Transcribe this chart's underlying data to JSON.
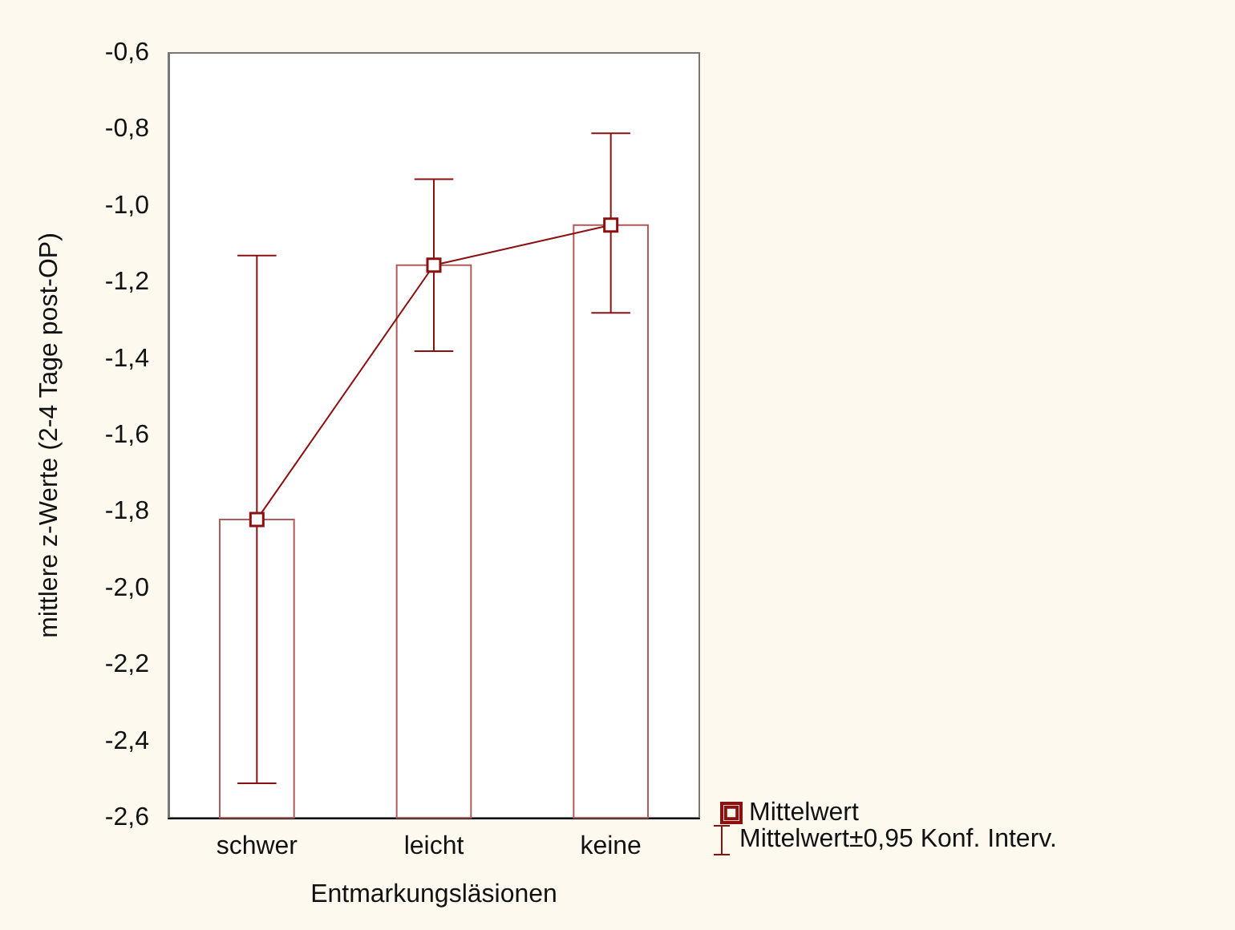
{
  "chart_data": {
    "type": "bar",
    "xlabel": "Entmarkungsläsionen",
    "ylabel": "mittlere z-Werte (2-4 Tage post-OP)",
    "categories": [
      "schwer",
      "leicht",
      "keine"
    ],
    "series": [
      {
        "color": "#b05a5a",
        "values": [
          0.78,
          1.445,
          1.55
        ],
        "base": [
          -2.6,
          -2.6,
          -2.6
        ]
      },
      {
        "type": "line",
        "name": "Mittelwert",
        "color": "#8b1010",
        "marker": "square",
        "values": [
          -1.82,
          -1.155,
          -1.05
        ],
        "errors": [
          [
            -2.51,
            -1.13
          ],
          [
            -1.38,
            -0.93
          ],
          [
            -1.28,
            -0.81
          ]
        ]
      }
    ],
    "ylim": [
      -2.6,
      -0.6
    ],
    "yticks": [
      {
        "value": -2.6,
        "label": "-2,6"
      },
      {
        "value": -2.4,
        "label": "-2,4"
      },
      {
        "value": -2.2,
        "label": "-2,2"
      },
      {
        "value": -2.0,
        "label": "-2,0"
      },
      {
        "value": -1.8,
        "label": "-1,8"
      },
      {
        "value": -1.6,
        "label": "-1,6"
      },
      {
        "value": -1.4,
        "label": "-1,4"
      },
      {
        "value": -1.2,
        "label": "-1,2"
      },
      {
        "value": -1.0,
        "label": "-1,0"
      },
      {
        "value": -0.8,
        "label": "-0,8"
      },
      {
        "value": -0.6,
        "label": "-0,6"
      }
    ],
    "annotations": [
      "Mittelwert±0,95 Konf. Interv."
    ],
    "legend": "bottom right",
    "grid": false
  }
}
